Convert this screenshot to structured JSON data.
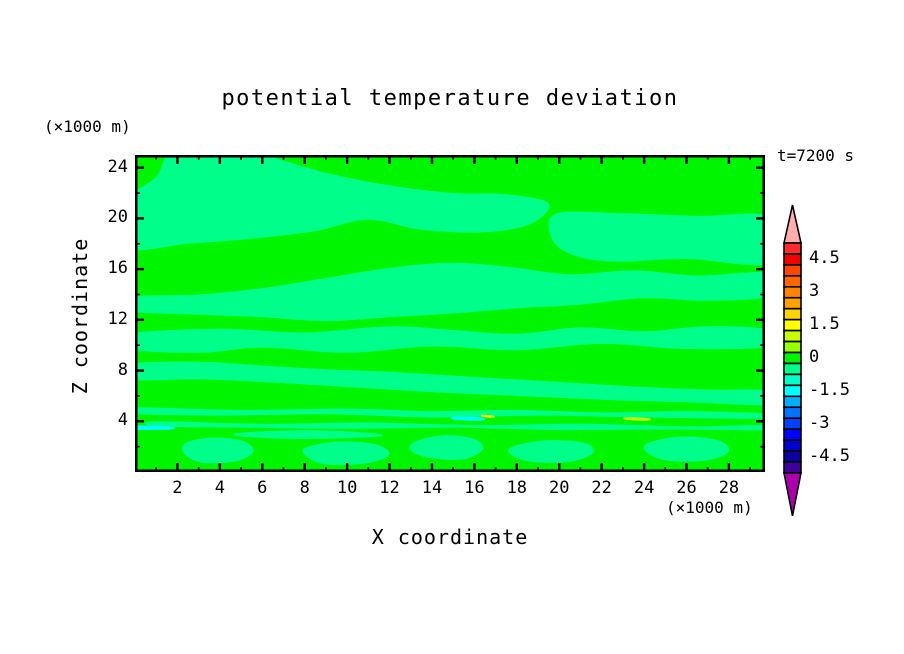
{
  "chart_data": {
    "type": "contour",
    "title": "potential temperature deviation",
    "annotation": "t=7200 s",
    "xlabel": "X coordinate",
    "x_unit": "(×1000 m)",
    "ylabel": "Z coordinate",
    "y_unit": "(×1000 m)",
    "x_range": [
      0,
      29.7
    ],
    "z_range": [
      0,
      25
    ],
    "x_major_ticks": [
      2,
      4,
      6,
      8,
      10,
      12,
      14,
      16,
      18,
      20,
      22,
      24,
      26,
      28
    ],
    "x_minor_ticks": [
      1,
      3,
      5,
      7,
      9,
      11,
      13,
      15,
      17,
      19,
      21,
      23,
      25,
      27,
      29
    ],
    "y_major_ticks": [
      4,
      8,
      12,
      16,
      20,
      24
    ],
    "y_minor_ticks": [
      2,
      6,
      10,
      14,
      18,
      22
    ],
    "contour_interval": 0.5,
    "field_colors": {
      "positive_band": "#00f500",
      "negative_band": "#00ff8a",
      "cyan_fleck": "#00ffff",
      "yellow_fleck": "#ffff00",
      "chartreuse_fleck": "#c8ff00"
    },
    "colorbar": {
      "labels": [
        "4.5",
        "3",
        "1.5",
        "0",
        "-1.5",
        "-3",
        "-4.5"
      ],
      "box_colors": [
        "#ff2a2a",
        "#f40000",
        "#ff4700",
        "#ff6600",
        "#ff8400",
        "#ffa200",
        "#ffd500",
        "#ffff00",
        "#c8ff00",
        "#96ff00",
        "#00f500",
        "#00ff8a",
        "#00ffc8",
        "#00ffff",
        "#00b0ff",
        "#0073ff",
        "#0041ff",
        "#0000ff",
        "#0000d0",
        "#0d00a0",
        "#40009b"
      ],
      "arrow_top_color": "#ffadad",
      "arrow_bottom_color": "#ad00ad",
      "outline_color": "#000000"
    },
    "regions": [
      {
        "band": "negative",
        "points": [
          [
            -0.3,
            21.4
          ],
          [
            1.0,
            23.3
          ],
          [
            1.9,
            25.4
          ],
          [
            5,
            25.4
          ],
          [
            9,
            23.6
          ],
          [
            12,
            22.6
          ],
          [
            15,
            22.0
          ],
          [
            17.5,
            21.9
          ],
          [
            19.5,
            21.2
          ],
          [
            18.7,
            19.6
          ],
          [
            16.5,
            18.9
          ],
          [
            13.5,
            19.1
          ],
          [
            11,
            19.9
          ],
          [
            8.5,
            19.0
          ],
          [
            5.5,
            18.4
          ],
          [
            2.5,
            18.0
          ],
          [
            -0.3,
            17.7
          ]
        ]
      },
      {
        "band": "negative",
        "points": [
          [
            19.9,
            20.4
          ],
          [
            23,
            20.4
          ],
          [
            26.5,
            20.2
          ],
          [
            30,
            20.1
          ],
          [
            30,
            16.5
          ],
          [
            26,
            16.8
          ],
          [
            22.5,
            16.6
          ],
          [
            20.5,
            17.2
          ],
          [
            19.6,
            18.6
          ]
        ]
      },
      {
        "band": "negative",
        "points": [
          [
            -0.3,
            13.8
          ],
          [
            3,
            14.0
          ],
          [
            6,
            14.5
          ],
          [
            9,
            15.3
          ],
          [
            12,
            16.1
          ],
          [
            14.9,
            16.5
          ],
          [
            17.5,
            16.2
          ],
          [
            20.5,
            15.6
          ],
          [
            23.5,
            15.9
          ],
          [
            26.5,
            15.5
          ],
          [
            30,
            15.7
          ],
          [
            30,
            13.9
          ],
          [
            27,
            13.5
          ],
          [
            24,
            13.7
          ],
          [
            21,
            13.2
          ],
          [
            18,
            12.9
          ],
          [
            15,
            12.5
          ],
          [
            12,
            12.2
          ],
          [
            9,
            11.9
          ],
          [
            6,
            12.2
          ],
          [
            3,
            12.4
          ],
          [
            -0.3,
            12.7
          ]
        ]
      },
      {
        "band": "negative",
        "points": [
          [
            -0.3,
            10.9
          ],
          [
            4,
            11.3
          ],
          [
            8,
            11.0
          ],
          [
            12,
            11.5
          ],
          [
            15,
            11.2
          ],
          [
            18,
            10.9
          ],
          [
            21,
            11.4
          ],
          [
            24,
            11.1
          ],
          [
            27,
            11.5
          ],
          [
            30,
            11.2
          ],
          [
            30,
            9.9
          ],
          [
            26,
            9.7
          ],
          [
            22,
            10.1
          ],
          [
            18,
            9.6
          ],
          [
            14,
            9.9
          ],
          [
            10,
            9.4
          ],
          [
            6,
            9.8
          ],
          [
            3,
            9.4
          ],
          [
            -0.3,
            9.7
          ]
        ]
      },
      {
        "band": "negative",
        "points": [
          [
            -0.3,
            8.5
          ],
          [
            3,
            8.7
          ],
          [
            6,
            8.4
          ],
          [
            9,
            8.1
          ],
          [
            12,
            7.9
          ],
          [
            15,
            7.6
          ],
          [
            18,
            7.3
          ],
          [
            21,
            7.0
          ],
          [
            24,
            6.7
          ],
          [
            27,
            6.5
          ],
          [
            30,
            6.4
          ],
          [
            30,
            5.3
          ],
          [
            26,
            5.5
          ],
          [
            22,
            5.7
          ],
          [
            18,
            6.0
          ],
          [
            14,
            6.3
          ],
          [
            10,
            6.7
          ],
          [
            6,
            7.1
          ],
          [
            3,
            7.3
          ],
          [
            -0.3,
            7.3
          ]
        ]
      },
      {
        "band": "negative",
        "points": [
          [
            -0.3,
            5.1
          ],
          [
            5,
            4.9
          ],
          [
            10,
            5.0
          ],
          [
            14,
            4.8
          ],
          [
            18,
            4.9
          ],
          [
            22,
            4.7
          ],
          [
            26,
            4.8
          ],
          [
            30,
            4.6
          ],
          [
            30,
            4.2
          ],
          [
            24,
            4.3
          ],
          [
            19,
            4.45
          ],
          [
            14,
            4.3
          ],
          [
            9,
            4.55
          ],
          [
            4,
            4.45
          ],
          [
            -0.3,
            4.6
          ]
        ]
      },
      {
        "band": "negative",
        "points": [
          [
            1,
            4.0
          ],
          [
            6,
            3.8
          ],
          [
            11,
            3.9
          ],
          [
            16,
            3.7
          ],
          [
            21,
            3.8
          ],
          [
            26,
            3.6
          ],
          [
            30,
            3.7
          ],
          [
            30,
            3.3
          ],
          [
            25,
            3.35
          ],
          [
            20,
            3.3
          ],
          [
            15,
            3.5
          ],
          [
            10,
            3.4
          ],
          [
            5,
            3.5
          ],
          [
            1,
            3.6
          ]
        ]
      },
      {
        "band": "negative",
        "points": [
          [
            5,
            3.1
          ],
          [
            8,
            3.3
          ],
          [
            11,
            3.1
          ],
          [
            11.5,
            2.8
          ],
          [
            8,
            2.6
          ],
          [
            5,
            2.8
          ]
        ]
      },
      {
        "band": "negative",
        "points": [
          [
            2.3,
            2.2
          ],
          [
            3.5,
            2.7
          ],
          [
            5.0,
            2.5
          ],
          [
            5.6,
            1.7
          ],
          [
            4.9,
            0.9
          ],
          [
            3.3,
            0.7
          ],
          [
            2.4,
            1.3
          ]
        ]
      },
      {
        "band": "negative",
        "points": [
          [
            8,
            1.9
          ],
          [
            9.5,
            2.4
          ],
          [
            11.3,
            2.2
          ],
          [
            12,
            1.4
          ],
          [
            11,
            0.7
          ],
          [
            9,
            0.6
          ],
          [
            8.1,
            1.2
          ]
        ]
      },
      {
        "band": "negative",
        "points": [
          [
            13.2,
            2.4
          ],
          [
            14.6,
            2.9
          ],
          [
            16,
            2.6
          ],
          [
            16.4,
            1.8
          ],
          [
            15.5,
            1.0
          ],
          [
            13.9,
            1.1
          ],
          [
            13.0,
            1.7
          ]
        ]
      },
      {
        "band": "negative",
        "points": [
          [
            17.8,
            2.0
          ],
          [
            19.4,
            2.5
          ],
          [
            21.2,
            2.3
          ],
          [
            21.6,
            1.5
          ],
          [
            20.5,
            0.8
          ],
          [
            18.7,
            0.8
          ],
          [
            17.7,
            1.4
          ]
        ]
      },
      {
        "band": "negative",
        "points": [
          [
            24.2,
            2.3
          ],
          [
            25.8,
            2.8
          ],
          [
            27.5,
            2.5
          ],
          [
            28.0,
            1.6
          ],
          [
            26.9,
            0.9
          ],
          [
            25.1,
            0.9
          ],
          [
            24.1,
            1.6
          ]
        ]
      },
      {
        "band": "cyan",
        "points": [
          [
            -0.3,
            3.65
          ],
          [
            1.6,
            3.6
          ],
          [
            1.7,
            3.35
          ],
          [
            -0.3,
            3.35
          ]
        ]
      },
      {
        "band": "cyan",
        "points": [
          [
            15.0,
            4.35
          ],
          [
            16.3,
            4.3
          ],
          [
            16.4,
            4.05
          ],
          [
            15.1,
            4.1
          ]
        ]
      },
      {
        "band": "yellow",
        "points": [
          [
            16.35,
            4.5
          ],
          [
            16.9,
            4.45
          ],
          [
            16.9,
            4.3
          ],
          [
            16.4,
            4.33
          ]
        ]
      },
      {
        "band": "chartreuse",
        "points": [
          [
            23.1,
            4.3
          ],
          [
            24.2,
            4.25
          ],
          [
            24.2,
            4.05
          ],
          [
            23.2,
            4.1
          ]
        ]
      }
    ]
  }
}
